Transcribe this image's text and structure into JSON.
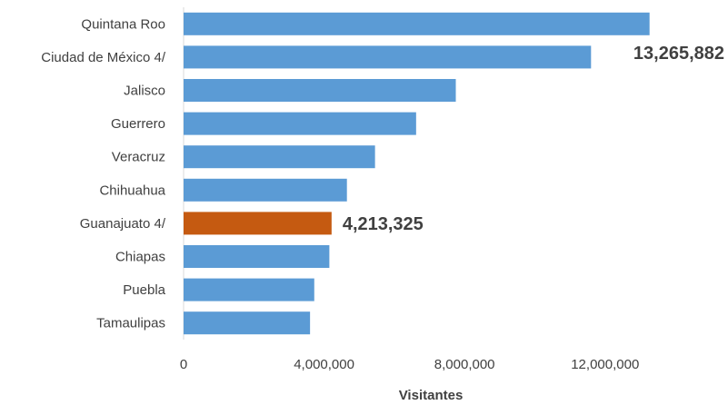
{
  "chart_data": {
    "type": "bar",
    "orientation": "horizontal",
    "categories": [
      "Quintana Roo",
      "Ciudad de México 4/",
      "Jalisco",
      "Guerrero",
      "Veracruz",
      "Chihuahua",
      "Guanajuato 4/",
      "Chiapas",
      "Puebla",
      "Tamaulipas"
    ],
    "values": [
      13265882,
      11600000,
      7750000,
      6620000,
      5450000,
      4650000,
      4213325,
      4150000,
      3720000,
      3600000
    ],
    "highlight_index": 6,
    "colors": {
      "default": "#5B9BD5",
      "highlight": "#C55A11"
    },
    "data_labels": [
      {
        "category": "Quintana Roo",
        "text": "13,265,882"
      },
      {
        "category": "Guanajuato 4/",
        "text": "4,213,325"
      }
    ],
    "xlabel": "Visitantes",
    "ylabel": "",
    "xlim": [
      0,
      13300000
    ],
    "xticks": [
      0,
      4000000,
      8000000,
      12000000
    ],
    "xtick_labels": [
      "0",
      "4,000,000",
      "8,000,000",
      "12,000,000"
    ],
    "grid": false
  }
}
